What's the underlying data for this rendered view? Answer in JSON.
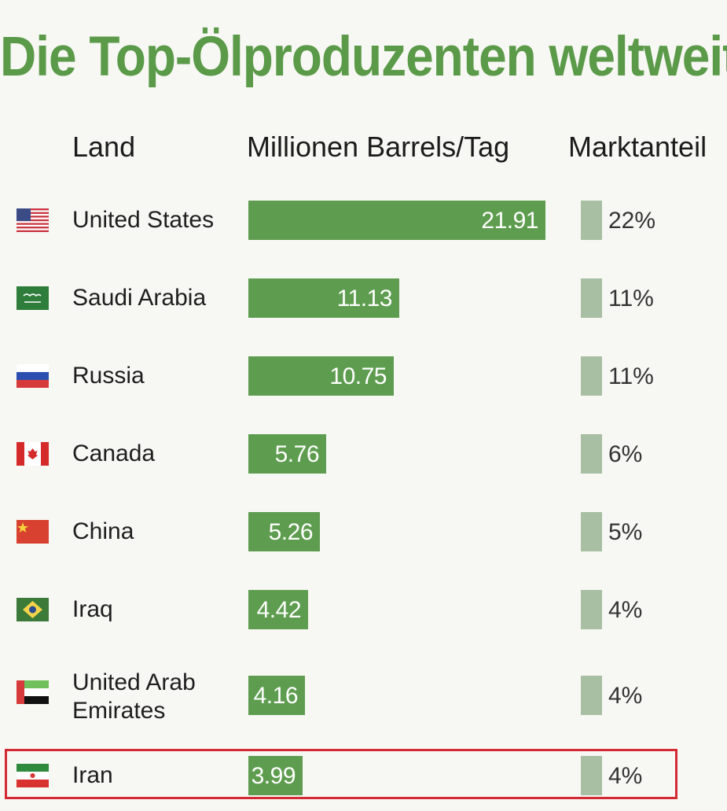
{
  "chart_data": {
    "type": "bar",
    "title": "Die Top-Ölproduzenten weltweit",
    "columns": {
      "land": "Land",
      "value": "Millionen Barrels/Tag",
      "share": "Marktanteil"
    },
    "categories": [
      "United States",
      "Saudi Arabia",
      "Russia",
      "Canada",
      "China",
      "Iraq",
      "United Arab Emirates",
      "Iran"
    ],
    "series": [
      {
        "values": [
          21.91,
          11.13,
          10.75,
          5.76,
          5.26,
          4.42,
          4.16,
          3.99
        ]
      }
    ],
    "rows": [
      {
        "land": "United States",
        "flag": "usa-flag-icon",
        "value": 21.91,
        "value_label": "21.91",
        "share_label": "22%"
      },
      {
        "land": "Saudi Arabia",
        "flag": "saudi-arabia-flag-icon",
        "value": 11.13,
        "value_label": "11.13",
        "share_label": "11%"
      },
      {
        "land": "Russia",
        "flag": "russia-flag-icon",
        "value": 10.75,
        "value_label": "10.75",
        "share_label": "11%"
      },
      {
        "land": "Canada",
        "flag": "canada-flag-icon",
        "value": 5.76,
        "value_label": "5.76",
        "share_label": "6%"
      },
      {
        "land": "China",
        "flag": "china-flag-icon",
        "value": 5.26,
        "value_label": "5.26",
        "share_label": "5%"
      },
      {
        "land": "Iraq",
        "flag": "iraq-flag-icon",
        "value": 4.42,
        "value_label": "4.42",
        "share_label": "4%"
      },
      {
        "land": "United Arab Emirates",
        "land_lines": [
          "United Arab",
          "Emirates"
        ],
        "flag": "uae-flag-icon",
        "value": 4.16,
        "value_label": "4.16",
        "share_label": "4%"
      },
      {
        "land": "Iran",
        "flag": "iran-flag-icon",
        "value": 3.99,
        "value_label": "3.99",
        "share_label": "4%",
        "highlighted": true
      }
    ],
    "colors": {
      "title": "#5a9a48",
      "bar": "#5e9d4f",
      "share_box": "#a8bfa3",
      "highlight_border": "#d42a34"
    },
    "grid": false,
    "legend": "none"
  }
}
